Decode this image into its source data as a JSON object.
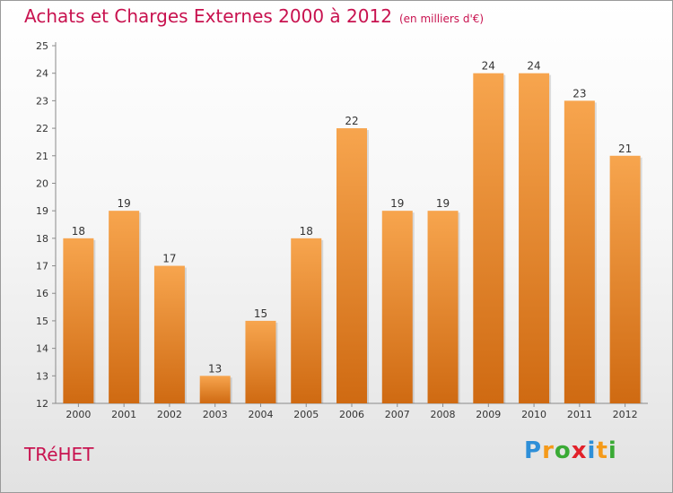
{
  "header": {
    "title": "Achats et Charges Externes 2000 à 2012",
    "unit": "(en milliers d'€)"
  },
  "footer": {
    "commune": "TRéHET",
    "logo_letters": [
      {
        "ch": "P",
        "color": "#2e8fd8"
      },
      {
        "ch": "r",
        "color": "#f59a1a"
      },
      {
        "ch": "o",
        "color": "#3aaa35"
      },
      {
        "ch": "x",
        "color": "#e2212a"
      },
      {
        "ch": "i",
        "color": "#2e8fd8"
      },
      {
        "ch": "t",
        "color": "#f59a1a"
      },
      {
        "ch": "i",
        "color": "#3aaa35"
      }
    ]
  },
  "chart_data": {
    "type": "bar",
    "title": "Achats et Charges Externes 2000 à 2012",
    "subtitle": "(en milliers d'€)",
    "categories": [
      "2000",
      "2001",
      "2002",
      "2003",
      "2004",
      "2005",
      "2006",
      "2007",
      "2008",
      "2009",
      "2010",
      "2011",
      "2012"
    ],
    "values": [
      18,
      19,
      17,
      13,
      15,
      18,
      22,
      19,
      19,
      24,
      24,
      23,
      21
    ],
    "data_labels": [
      "18",
      "19",
      "17",
      "13",
      "15",
      "18",
      "22",
      "19",
      "19",
      "24",
      "24",
      "23",
      "21"
    ],
    "ylim": [
      12,
      25
    ],
    "yticks": [
      12,
      13,
      14,
      15,
      16,
      17,
      18,
      19,
      20,
      21,
      22,
      23,
      24,
      25
    ],
    "grid": false,
    "colors": {
      "bar_top": "#f7a54e",
      "bar_bottom": "#cf6a12",
      "axis": "#8a8a8a"
    }
  }
}
